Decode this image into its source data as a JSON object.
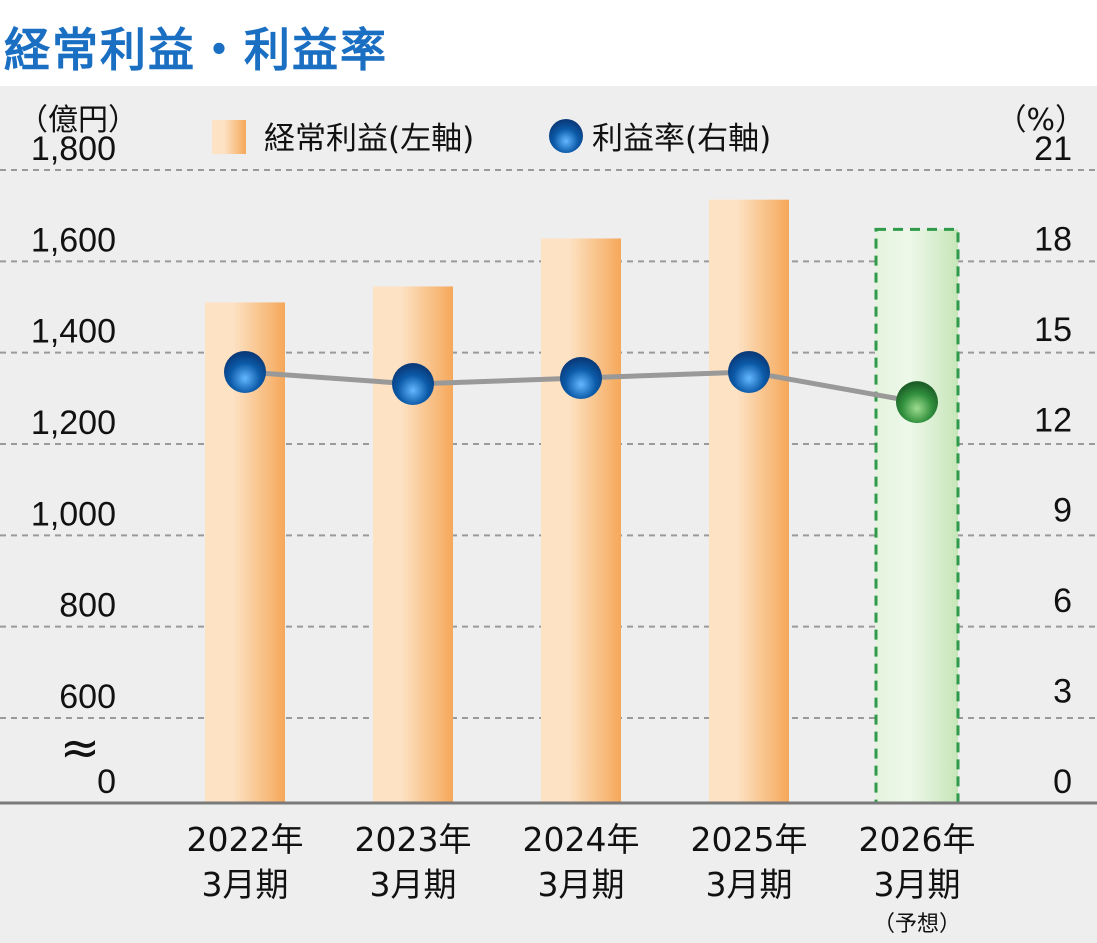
{
  "title": "経常利益・利益率",
  "chart_data": {
    "type": "bar",
    "categories": [
      {
        "year": "2022年",
        "period": "3月期",
        "note": ""
      },
      {
        "year": "2023年",
        "period": "3月期",
        "note": ""
      },
      {
        "year": "2024年",
        "period": "3月期",
        "note": ""
      },
      {
        "year": "2025年",
        "period": "3月期",
        "note": ""
      },
      {
        "year": "2026年",
        "period": "3月期",
        "note": "（予想）"
      }
    ],
    "series": [
      {
        "name": "経常利益(左軸)",
        "type": "bar",
        "axis": "left",
        "values": [
          1510,
          1545,
          1650,
          1735,
          1670
        ]
      },
      {
        "name": "利益率(右軸)",
        "type": "line",
        "axis": "right",
        "values": [
          14.3,
          13.9,
          14.1,
          14.3,
          13.3
        ]
      }
    ],
    "forecast_index": 4,
    "left_axis": {
      "unit": "（億円）",
      "ylim": [
        600,
        1800
      ],
      "ticks": [
        {
          "value": 1800,
          "label": "1,800"
        },
        {
          "value": 1600,
          "label": "1,600"
        },
        {
          "value": 1400,
          "label": "1,400"
        },
        {
          "value": 1200,
          "label": "1,200"
        },
        {
          "value": 1000,
          "label": "1,000"
        },
        {
          "value": 800,
          "label": "800"
        },
        {
          "value": 600,
          "label": "600"
        }
      ],
      "zero_label": "0",
      "break_mark": "≈"
    },
    "right_axis": {
      "unit": "（%）",
      "ylim": [
        0,
        21
      ],
      "ticks": [
        {
          "value": 21,
          "label": "21"
        },
        {
          "value": 18,
          "label": "18"
        },
        {
          "value": 15,
          "label": "15"
        },
        {
          "value": 12,
          "label": "12"
        },
        {
          "value": 9,
          "label": "9"
        },
        {
          "value": 6,
          "label": "6"
        },
        {
          "value": 3,
          "label": "3"
        },
        {
          "value": 0,
          "label": "0"
        }
      ]
    },
    "grid": "horizontal-dashed",
    "legend_position": "top",
    "colors": {
      "plot_bg": "#eeeeee",
      "bar": "#f5a85a",
      "bar_highlight": "#fde2c4",
      "forecast_bar": "#cdeac2",
      "forecast_border": "#2e9a4a",
      "line": "#999999",
      "marker": "#0b5aa8",
      "forecast_marker": "#2f8f3c",
      "grid": "#9a9a9a",
      "axis": "#7a7a7a",
      "title": "#1a6fc2"
    }
  }
}
